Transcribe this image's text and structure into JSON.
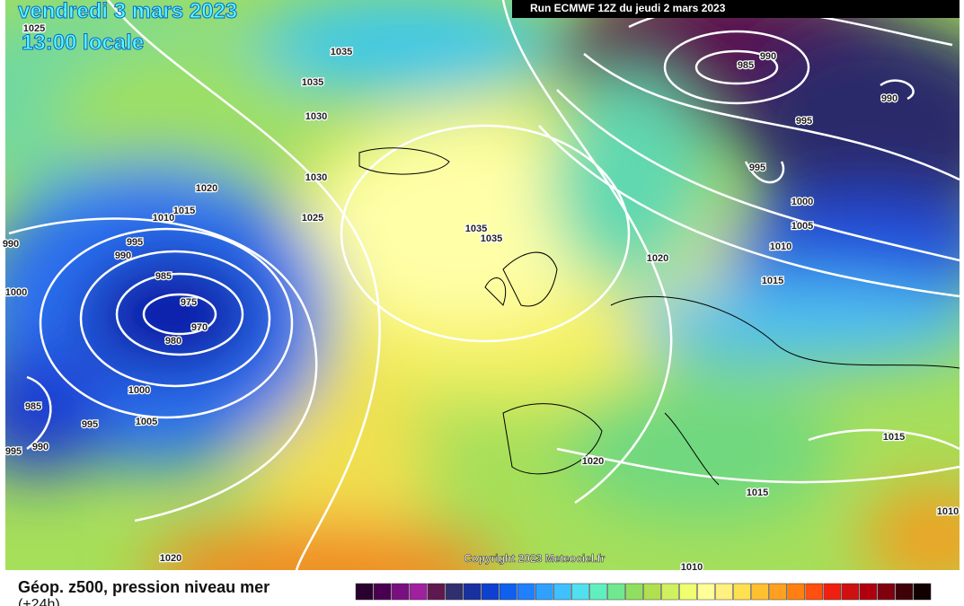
{
  "header": {
    "date": "vendredi 3 mars 2023",
    "time": "13:00 locale",
    "run": "Run ECMWF 12Z du jeudi 2 mars 2023"
  },
  "copyright": "Copyright 2023 Meteociel.fr",
  "legend": {
    "title": "Géop. z500, pression niveau mer",
    "subtitle": "(+24h)"
  },
  "isobar_labels": [
    1025,
    1035,
    1035,
    1030,
    1020,
    1015,
    1010,
    1030,
    1025,
    995,
    990,
    990,
    985,
    975,
    970,
    980,
    1000,
    1000,
    1005,
    985,
    995,
    990,
    995,
    1035,
    1035,
    1020,
    985,
    990,
    990,
    995,
    995,
    1000,
    1005,
    1010,
    1015,
    1020,
    1015,
    1015,
    1010,
    1020,
    1010
  ]
}
